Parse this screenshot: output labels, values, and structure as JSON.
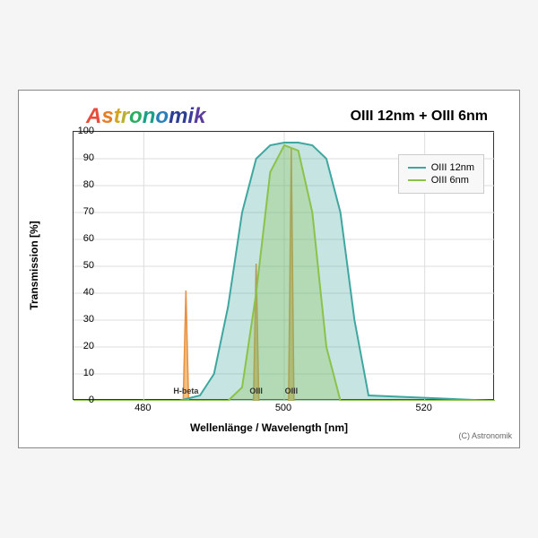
{
  "chart": {
    "type": "line-area",
    "brand_text": "Astronomik",
    "title": "OIII 12nm + OIII 6nm",
    "xlabel": "Wellenlänge / Wavelength [nm]",
    "ylabel": "Transmission [%]",
    "xlim": [
      470,
      530
    ],
    "ylim": [
      0,
      100
    ],
    "ytick_step": 10,
    "xtick_step": 20,
    "xticks": [
      480,
      500,
      520
    ],
    "background_color": "#ffffff",
    "grid_color": "#dddddd",
    "plot_border_color": "#333333",
    "copyright": "(C) Astronomik",
    "label_fontsize": 12,
    "tick_fontsize": 11,
    "title_fontsize": 16,
    "series": [
      {
        "name": "OIII 12nm",
        "color": "#3fa7a0",
        "fill_opacity": 0.3,
        "line_width": 2,
        "x": [
          470,
          485,
          488,
          490,
          492,
          494,
          496,
          498,
          500,
          502,
          504,
          506,
          508,
          510,
          512,
          530
        ],
        "y": [
          0,
          0,
          2,
          10,
          35,
          70,
          90,
          95,
          96,
          96,
          95,
          90,
          70,
          30,
          2,
          0
        ]
      },
      {
        "name": "OIII 6nm",
        "color": "#8bc34a",
        "fill_opacity": 0.3,
        "line_width": 2,
        "x": [
          470,
          492,
          494,
          496,
          498,
          500,
          502,
          504,
          506,
          508,
          530
        ],
        "y": [
          0,
          0,
          5,
          40,
          85,
          95,
          93,
          70,
          20,
          0,
          0
        ]
      }
    ],
    "emission_peaks": [
      {
        "label": "H-beta",
        "x": 486,
        "height": 41,
        "color": "#e89040",
        "fill_color": "#f4c080"
      },
      {
        "label": "OIII",
        "x": 496,
        "height": 51,
        "color": "#e89040",
        "fill_color": "#f4c080"
      },
      {
        "label": "OIII",
        "x": 501,
        "height": 94,
        "color": "#e89040",
        "fill_color": "#f4c080"
      }
    ],
    "legend": {
      "position": "inside-top-right",
      "items": [
        {
          "label": "OIII 12nm",
          "color": "#3fa7a0"
        },
        {
          "label": "OIII 6nm",
          "color": "#8bc34a"
        }
      ]
    }
  }
}
